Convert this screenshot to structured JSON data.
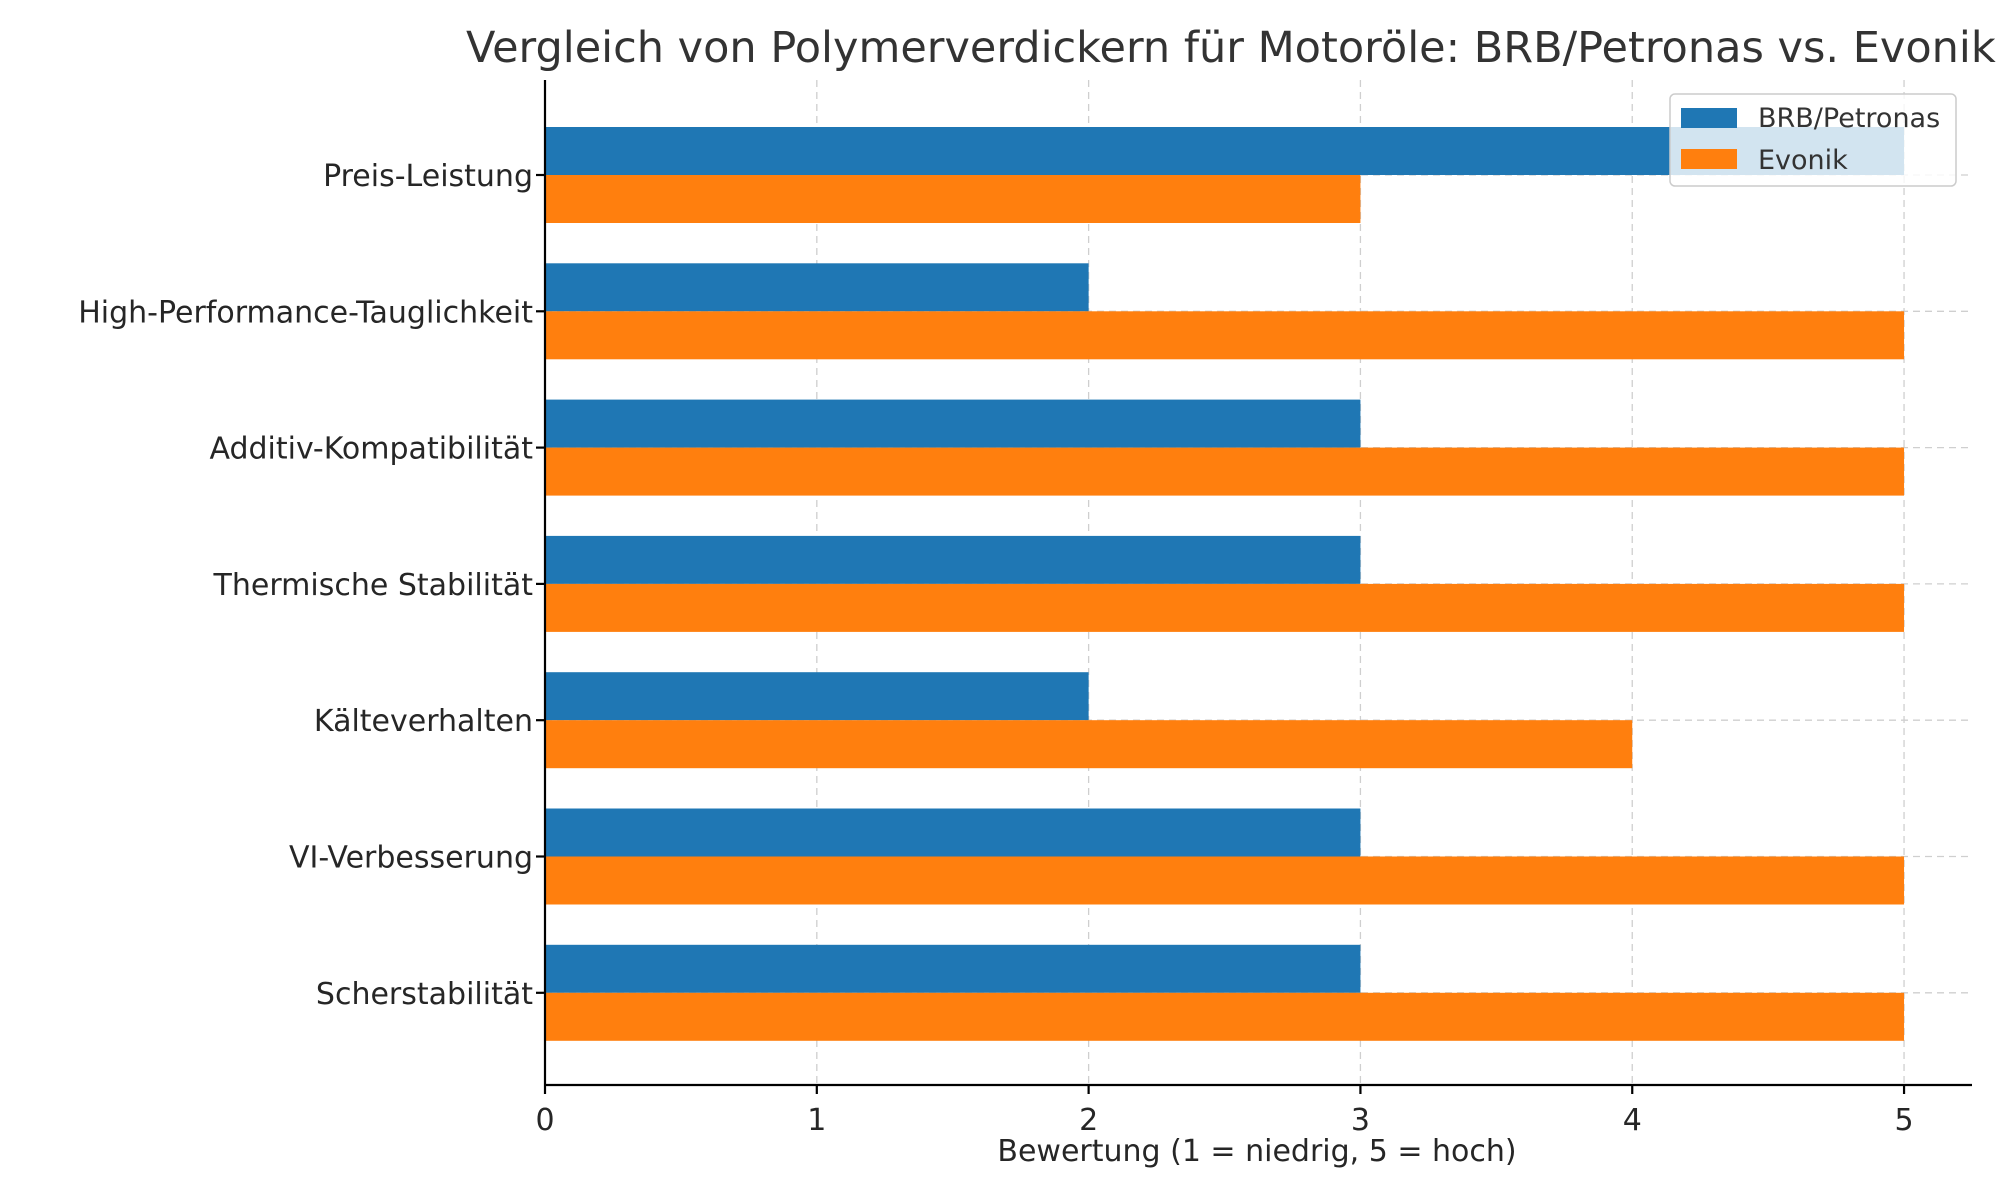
{
  "chart_data": {
    "type": "bar",
    "orientation": "horizontal",
    "title": "Vergleich von Polymerverdickern für Motoröle: BRB/Petronas vs. Evonik",
    "xlabel": "Bewertung (1 = niedrig, 5 = hoch)",
    "ylabel": "",
    "xlim": [
      0,
      5.25
    ],
    "xticks": [
      "0",
      "1",
      "2",
      "3",
      "4",
      "5"
    ],
    "grid": true,
    "legend_position": "top-right",
    "categories": [
      "Preis-Leistung",
      "High-Performance-Tauglichkeit",
      "Additiv-Kompatibilität",
      "Thermische Stabilität",
      "Kälteverhalten",
      "VI-Verbesserung",
      "Scherstabilität"
    ],
    "series": [
      {
        "name": "BRB/Petronas",
        "color": "#1f77b4",
        "values": [
          5,
          2,
          3,
          3,
          2,
          3,
          3
        ]
      },
      {
        "name": "Evonik",
        "color": "#ff7f0e",
        "values": [
          3,
          5,
          5,
          5,
          4,
          5,
          5
        ]
      }
    ]
  }
}
